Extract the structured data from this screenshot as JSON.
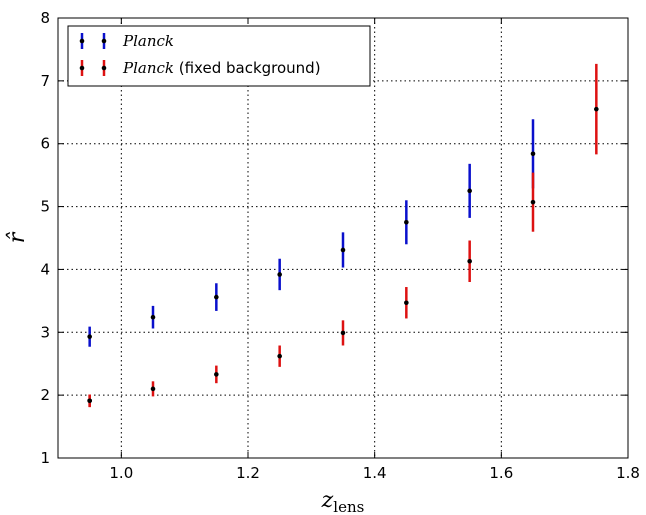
{
  "chart_data": {
    "type": "scatter",
    "xlabel": "z",
    "xlabel_sub": "lens",
    "ylabel": "r̂",
    "xlim": [
      0.9,
      1.8
    ],
    "ylim": [
      1,
      8
    ],
    "xticks": [
      "1.0",
      "1.2",
      "1.4",
      "1.6",
      "1.8"
    ],
    "yticks": [
      "1",
      "2",
      "3",
      "4",
      "5",
      "6",
      "7",
      "8"
    ],
    "grid": true,
    "legend_position": "top-left",
    "series": [
      {
        "name": "Planck",
        "name_suffix": "",
        "color": "#0a10cc",
        "x": [
          0.95,
          1.05,
          1.15,
          1.25,
          1.35,
          1.45,
          1.55,
          1.65
        ],
        "y": [
          2.93,
          3.24,
          3.56,
          3.92,
          4.31,
          4.75,
          5.25,
          5.84
        ],
        "err": [
          0.16,
          0.18,
          0.22,
          0.25,
          0.28,
          0.35,
          0.43,
          0.55
        ]
      },
      {
        "name": "Planck",
        "name_suffix": " (fixed background)",
        "color": "#dd1111",
        "x": [
          0.95,
          0.95,
          1.05,
          1.15,
          1.25,
          1.35,
          1.45,
          1.55,
          1.65,
          1.75
        ],
        "y": [
          1.91,
          1.91,
          2.1,
          2.33,
          2.62,
          2.99,
          3.47,
          4.13,
          5.07,
          6.55
        ],
        "err": [
          0.1,
          0.1,
          0.12,
          0.14,
          0.17,
          0.2,
          0.25,
          0.33,
          0.47,
          0.72
        ]
      }
    ]
  }
}
